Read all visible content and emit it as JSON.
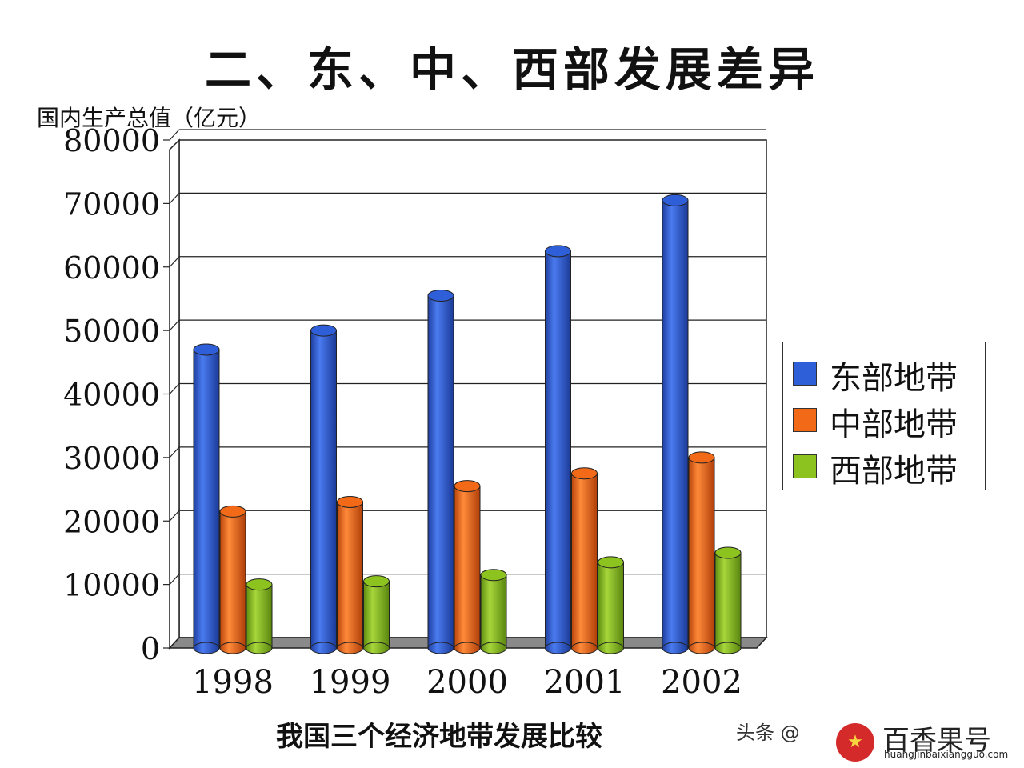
{
  "page": {
    "title": "二、东、中、西部发展差异",
    "watermark_text": "头条 @",
    "brand_name": "百香果号",
    "brand_url": "huangjinbaixiangguo.com",
    "brand_icon": "star-icon"
  },
  "chart_data": {
    "type": "bar",
    "title": "二、东、中、西部发展差异",
    "xlabel": "我国三个经济地带发展比较",
    "ylabel": "国内生产总值（亿元）",
    "categories": [
      "1998",
      "1999",
      "2000",
      "2001",
      "2002"
    ],
    "ylim": [
      0,
      80000
    ],
    "yticks": [
      0,
      10000,
      20000,
      30000,
      40000,
      50000,
      60000,
      70000,
      80000
    ],
    "grid": true,
    "legend_position": "right",
    "series": [
      {
        "name": "东部地带",
        "color": "#2f5fd8",
        "values": [
          47000,
          50000,
          55500,
          62500,
          70500
        ]
      },
      {
        "name": "中部地带",
        "color": "#f26a17",
        "values": [
          21500,
          23000,
          25500,
          27500,
          30000
        ]
      },
      {
        "name": "西部地带",
        "color": "#8cc31f",
        "values": [
          10000,
          10500,
          11500,
          13500,
          15000
        ]
      }
    ]
  }
}
